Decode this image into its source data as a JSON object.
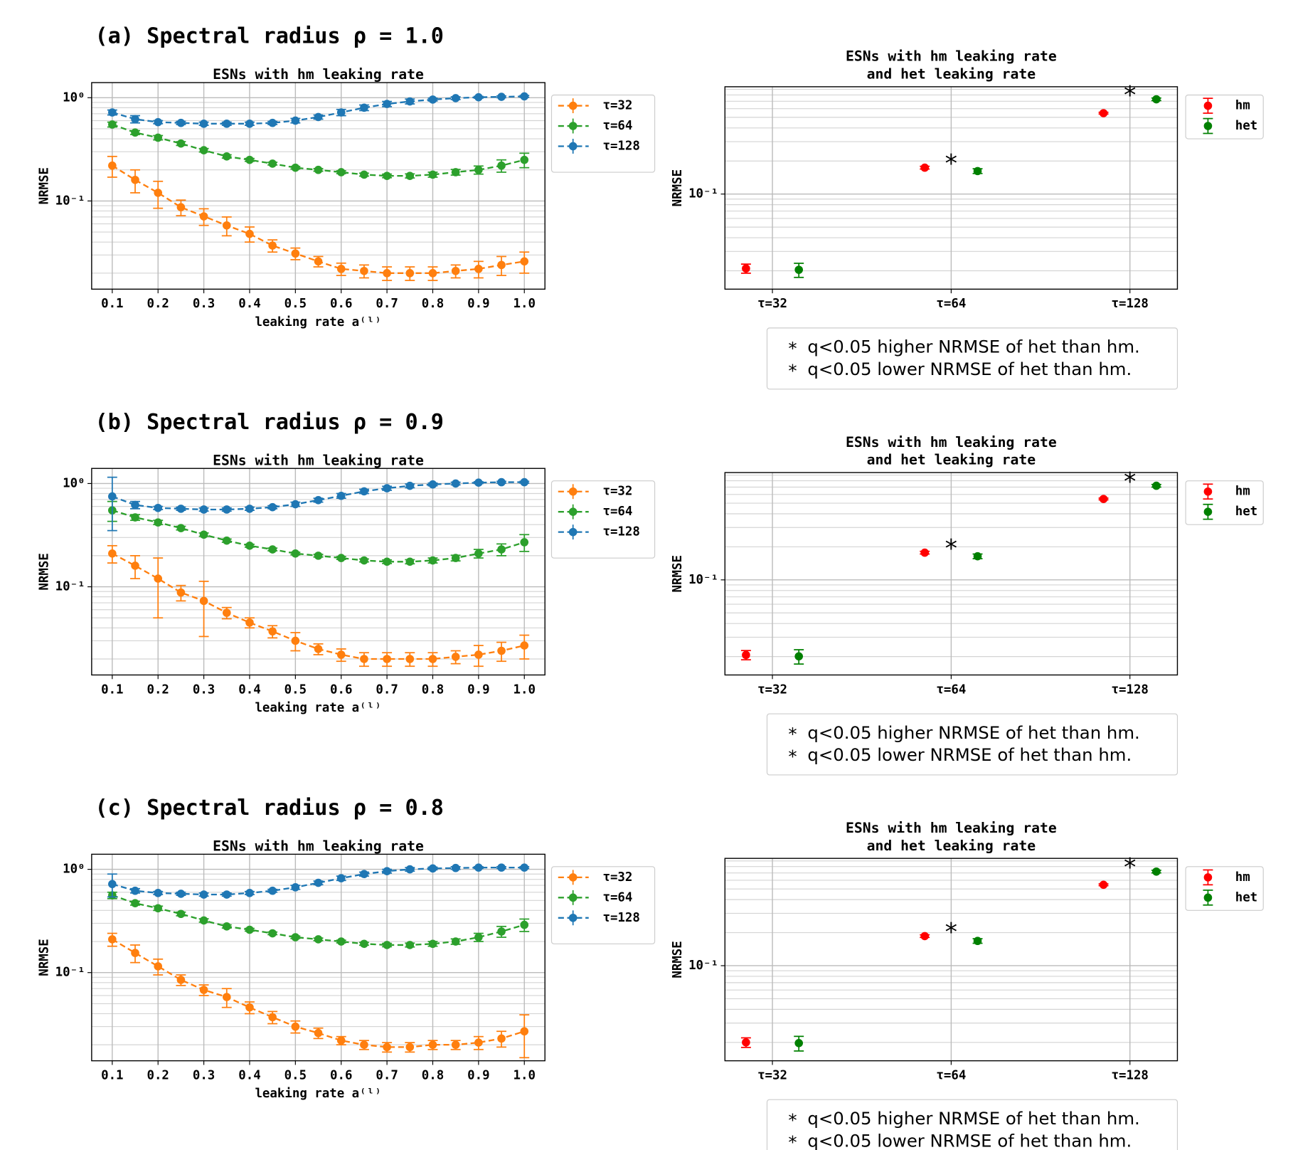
{
  "chart_data": [
    {
      "type": "line",
      "panel_label": "(a) Spectral radius ρ = 1.0",
      "title": "ESNs with hm leaking rate",
      "xlabel": "leaking rate a⁽ˡ⁾",
      "ylabel": "NRMSE",
      "log_y": true,
      "grid": true,
      "xlim": [
        0.055,
        1.045
      ],
      "ylim": [
        0.014,
        1.4
      ],
      "xticks": [
        0.1,
        0.2,
        0.3,
        0.4,
        0.5,
        0.6,
        0.7,
        0.8,
        0.9,
        {
          "value": 1,
          "label": "1.0"
        }
      ],
      "yticks": [
        {
          "value": 1,
          "label": "10⁰"
        },
        {
          "value": 0.1,
          "label": "10⁻¹"
        }
      ],
      "minor_yticks": [
        0.02,
        0.03,
        0.04,
        0.05,
        0.06,
        0.07,
        0.08,
        0.09,
        0.2,
        0.3,
        0.4,
        0.5,
        0.6,
        0.7,
        0.8,
        0.9
      ],
      "x": [
        0.1,
        0.15,
        0.2,
        0.25,
        0.3,
        0.35,
        0.4,
        0.45,
        0.5,
        0.55,
        0.6,
        0.65,
        0.7,
        0.75,
        0.8,
        0.85,
        0.9,
        0.95,
        1.0
      ],
      "series": [
        {
          "name": "τ=32",
          "color": "#ff7f0e",
          "values": [
            0.22,
            0.16,
            0.12,
            0.087,
            0.071,
            0.058,
            0.048,
            0.037,
            0.031,
            0.026,
            0.022,
            0.021,
            0.02,
            0.02,
            0.02,
            0.021,
            0.022,
            0.024,
            0.026
          ],
          "errors": [
            0.05,
            0.04,
            0.035,
            0.015,
            0.013,
            0.012,
            0.008,
            0.005,
            0.004,
            0.003,
            0.003,
            0.003,
            0.003,
            0.003,
            0.003,
            0.003,
            0.004,
            0.005,
            0.006
          ]
        },
        {
          "name": "τ=64",
          "color": "#2ca02c",
          "values": [
            0.55,
            0.46,
            0.41,
            0.36,
            0.31,
            0.27,
            0.25,
            0.23,
            0.21,
            0.2,
            0.19,
            0.18,
            0.175,
            0.175,
            0.18,
            0.19,
            0.2,
            0.22,
            0.25
          ],
          "errors": [
            0.03,
            0.02,
            0.02,
            0.015,
            0.012,
            0.01,
            0.008,
            0.007,
            0.006,
            0.006,
            0.006,
            0.006,
            0.007,
            0.008,
            0.01,
            0.012,
            0.018,
            0.03,
            0.04
          ]
        },
        {
          "name": "τ=128",
          "color": "#1f77b4",
          "values": [
            0.72,
            0.62,
            0.58,
            0.57,
            0.56,
            0.56,
            0.56,
            0.57,
            0.6,
            0.65,
            0.72,
            0.8,
            0.87,
            0.92,
            0.96,
            0.99,
            1.01,
            1.02,
            1.03
          ],
          "errors": [
            0.04,
            0.05,
            0.02,
            0.02,
            0.02,
            0.02,
            0.02,
            0.02,
            0.03,
            0.03,
            0.05,
            0.05,
            0.05,
            0.05,
            0.03,
            0.03,
            0.02,
            0.02,
            0.02
          ]
        }
      ]
    },
    {
      "type": "dot",
      "title": [
        "ESNs with hm leaking rate",
        "and het leaking rate"
      ],
      "ylabel": "NRMSE",
      "log_y": true,
      "grid": true,
      "ylim": [
        0.0136,
        0.95
      ],
      "yticks": [
        {
          "value": 0.1,
          "label": "10⁻¹"
        }
      ],
      "minor_yticks": [
        0.02,
        0.03,
        0.04,
        0.05,
        0.06,
        0.07,
        0.08,
        0.09,
        0.2,
        0.3,
        0.4,
        0.5,
        0.6,
        0.7,
        0.8,
        0.9
      ],
      "categories": [
        "τ=32",
        "τ=64",
        "τ=128"
      ],
      "series": [
        {
          "name": "hm",
          "color": "#ff0000",
          "values": [
            0.021,
            0.174,
            0.546
          ],
          "errors": [
            0.002,
            0.005,
            0.01
          ]
        },
        {
          "name": "het",
          "color": "#008000",
          "values": [
            0.0204,
            0.162,
            0.73
          ],
          "errors": [
            0.003,
            0.008,
            0.02
          ]
        }
      ],
      "markers": [
        {
          "category": "τ=64",
          "symbol": "*",
          "color": "#66cc55"
        },
        {
          "category": "τ=128",
          "symbol": "*",
          "color": "#c8339a"
        }
      ],
      "notes": [
        {
          "symbol": "*",
          "color": "#c8339a",
          "text": "q<0.05 higher NRMSE of het than hm."
        },
        {
          "symbol": "*",
          "color": "#66cc55",
          "text": "q<0.05 lower NRMSE of het than hm."
        }
      ]
    },
    {
      "type": "line",
      "panel_label": "(b) Spectral radius ρ = 0.9",
      "title": "ESNs with hm leaking rate",
      "xlabel": "leaking rate a⁽ˡ⁾",
      "ylabel": "NRMSE",
      "log_y": true,
      "grid": true,
      "xlim": [
        0.055,
        1.045
      ],
      "ylim": [
        0.014,
        1.4
      ],
      "xticks": [
        0.1,
        0.2,
        0.3,
        0.4,
        0.5,
        0.6,
        0.7,
        0.8,
        0.9,
        {
          "value": 1,
          "label": "1.0"
        }
      ],
      "yticks": [
        {
          "value": 1,
          "label": "10⁰"
        },
        {
          "value": 0.1,
          "label": "10⁻¹"
        }
      ],
      "minor_yticks": [
        0.02,
        0.03,
        0.04,
        0.05,
        0.06,
        0.07,
        0.08,
        0.09,
        0.2,
        0.3,
        0.4,
        0.5,
        0.6,
        0.7,
        0.8,
        0.9
      ],
      "x": [
        0.1,
        0.15,
        0.2,
        0.25,
        0.3,
        0.35,
        0.4,
        0.45,
        0.5,
        0.55,
        0.6,
        0.65,
        0.7,
        0.75,
        0.8,
        0.85,
        0.9,
        0.95,
        1.0
      ],
      "series": [
        {
          "name": "τ=32",
          "color": "#ff7f0e",
          "values": [
            0.21,
            0.16,
            0.12,
            0.088,
            0.073,
            0.056,
            0.045,
            0.037,
            0.03,
            0.025,
            0.022,
            0.02,
            0.02,
            0.02,
            0.02,
            0.021,
            0.022,
            0.024,
            0.027
          ],
          "errors": [
            0.04,
            0.04,
            0.07,
            0.015,
            0.04,
            0.007,
            0.005,
            0.005,
            0.006,
            0.003,
            0.003,
            0.003,
            0.003,
            0.003,
            0.003,
            0.003,
            0.005,
            0.005,
            0.007
          ]
        },
        {
          "name": "τ=64",
          "color": "#2ca02c",
          "values": [
            0.55,
            0.47,
            0.42,
            0.37,
            0.32,
            0.28,
            0.25,
            0.23,
            0.21,
            0.2,
            0.19,
            0.18,
            0.175,
            0.175,
            0.18,
            0.19,
            0.21,
            0.23,
            0.27
          ],
          "errors": [
            0.12,
            0.03,
            0.02,
            0.015,
            0.012,
            0.01,
            0.008,
            0.007,
            0.006,
            0.006,
            0.006,
            0.006,
            0.007,
            0.008,
            0.01,
            0.012,
            0.02,
            0.03,
            0.05
          ]
        },
        {
          "name": "τ=128",
          "color": "#1f77b4",
          "values": [
            0.75,
            0.62,
            0.58,
            0.57,
            0.56,
            0.56,
            0.57,
            0.59,
            0.63,
            0.69,
            0.76,
            0.84,
            0.9,
            0.95,
            0.98,
            1.0,
            1.02,
            1.03,
            1.03
          ],
          "errors": [
            0.4,
            0.05,
            0.02,
            0.02,
            0.02,
            0.02,
            0.02,
            0.02,
            0.03,
            0.03,
            0.04,
            0.04,
            0.04,
            0.04,
            0.03,
            0.03,
            0.02,
            0.02,
            0.02
          ]
        }
      ]
    },
    {
      "type": "dot",
      "title": [
        "ESNs with hm leaking rate",
        "and het leaking rate"
      ],
      "ylabel": "NRMSE",
      "log_y": true,
      "grid": true,
      "ylim": [
        0.0136,
        0.95
      ],
      "yticks": [
        {
          "value": 0.1,
          "label": "10⁻¹"
        }
      ],
      "minor_yticks": [
        0.02,
        0.03,
        0.04,
        0.05,
        0.06,
        0.07,
        0.08,
        0.09,
        0.2,
        0.3,
        0.4,
        0.5,
        0.6,
        0.7,
        0.8,
        0.9
      ],
      "categories": [
        "τ=32",
        "τ=64",
        "τ=128"
      ],
      "series": [
        {
          "name": "hm",
          "color": "#ff0000",
          "values": [
            0.0207,
            0.177,
            0.546
          ],
          "errors": [
            0.002,
            0.005,
            0.01
          ]
        },
        {
          "name": "het",
          "color": "#008000",
          "values": [
            0.0201,
            0.164,
            0.72
          ],
          "errors": [
            0.003,
            0.008,
            0.02
          ]
        }
      ],
      "markers": [
        {
          "category": "τ=64",
          "symbol": "*",
          "color": "#66cc55"
        },
        {
          "category": "τ=128",
          "symbol": "*",
          "color": "#c8339a"
        }
      ],
      "notes": [
        {
          "symbol": "*",
          "color": "#c8339a",
          "text": "q<0.05 higher NRMSE of het than hm."
        },
        {
          "symbol": "*",
          "color": "#66cc55",
          "text": "q<0.05 lower NRMSE of het than hm."
        }
      ]
    },
    {
      "type": "line",
      "panel_label": "(c) Spectral radius ρ = 0.8",
      "title": "ESNs with hm leaking rate",
      "xlabel": "leaking rate a⁽ˡ⁾",
      "ylabel": "NRMSE",
      "log_y": true,
      "grid": true,
      "xlim": [
        0.055,
        1.045
      ],
      "ylim": [
        0.014,
        1.4
      ],
      "xticks": [
        0.1,
        0.2,
        0.3,
        0.4,
        0.5,
        0.6,
        0.7,
        0.8,
        0.9,
        {
          "value": 1,
          "label": "1.0"
        }
      ],
      "yticks": [
        {
          "value": 1,
          "label": "10⁰"
        },
        {
          "value": 0.1,
          "label": "10⁻¹"
        }
      ],
      "minor_yticks": [
        0.02,
        0.03,
        0.04,
        0.05,
        0.06,
        0.07,
        0.08,
        0.09,
        0.2,
        0.3,
        0.4,
        0.5,
        0.6,
        0.7,
        0.8,
        0.9
      ],
      "x": [
        0.1,
        0.15,
        0.2,
        0.25,
        0.3,
        0.35,
        0.4,
        0.45,
        0.5,
        0.55,
        0.6,
        0.65,
        0.7,
        0.75,
        0.8,
        0.85,
        0.9,
        0.95,
        1.0
      ],
      "series": [
        {
          "name": "τ=32",
          "color": "#ff7f0e",
          "values": [
            0.21,
            0.155,
            0.115,
            0.085,
            0.068,
            0.058,
            0.046,
            0.037,
            0.03,
            0.026,
            0.022,
            0.02,
            0.019,
            0.019,
            0.02,
            0.02,
            0.021,
            0.023,
            0.027
          ],
          "errors": [
            0.03,
            0.03,
            0.02,
            0.01,
            0.008,
            0.012,
            0.006,
            0.005,
            0.004,
            0.003,
            0.002,
            0.002,
            0.002,
            0.002,
            0.002,
            0.002,
            0.003,
            0.004,
            0.012
          ]
        },
        {
          "name": "τ=64",
          "color": "#2ca02c",
          "values": [
            0.56,
            0.47,
            0.42,
            0.37,
            0.32,
            0.28,
            0.26,
            0.24,
            0.22,
            0.21,
            0.2,
            0.19,
            0.185,
            0.185,
            0.19,
            0.2,
            0.22,
            0.25,
            0.29
          ],
          "errors": [
            0.04,
            0.02,
            0.02,
            0.015,
            0.012,
            0.01,
            0.008,
            0.007,
            0.006,
            0.006,
            0.006,
            0.006,
            0.007,
            0.008,
            0.01,
            0.012,
            0.02,
            0.03,
            0.04
          ]
        },
        {
          "name": "τ=128",
          "color": "#1f77b4",
          "values": [
            0.72,
            0.62,
            0.59,
            0.58,
            0.57,
            0.57,
            0.59,
            0.62,
            0.67,
            0.74,
            0.82,
            0.9,
            0.96,
            1.0,
            1.02,
            1.03,
            1.04,
            1.04,
            1.04
          ],
          "errors": [
            0.18,
            0.03,
            0.02,
            0.02,
            0.02,
            0.02,
            0.02,
            0.02,
            0.03,
            0.03,
            0.04,
            0.04,
            0.04,
            0.04,
            0.03,
            0.03,
            0.02,
            0.02,
            0.02
          ]
        }
      ]
    },
    {
      "type": "dot",
      "title": [
        "ESNs with hm leaking rate",
        "and het leaking rate"
      ],
      "ylabel": "NRMSE",
      "log_y": true,
      "grid": true,
      "ylim": [
        0.0136,
        0.95
      ],
      "yticks": [
        {
          "value": 0.1,
          "label": "10⁻¹"
        }
      ],
      "minor_yticks": [
        0.02,
        0.03,
        0.04,
        0.05,
        0.06,
        0.07,
        0.08,
        0.09,
        0.2,
        0.3,
        0.4,
        0.5,
        0.6,
        0.7,
        0.8,
        0.9
      ],
      "categories": [
        "τ=32",
        "τ=64",
        "τ=128"
      ],
      "series": [
        {
          "name": "hm",
          "color": "#ff0000",
          "values": [
            0.02,
            0.186,
            0.546
          ],
          "errors": [
            0.002,
            0.005,
            0.01
          ]
        },
        {
          "name": "het",
          "color": "#008000",
          "values": [
            0.0197,
            0.168,
            0.72
          ],
          "errors": [
            0.003,
            0.008,
            0.02
          ]
        }
      ],
      "markers": [
        {
          "category": "τ=64",
          "symbol": "*",
          "color": "#66cc55"
        },
        {
          "category": "τ=128",
          "symbol": "*",
          "color": "#c8339a"
        }
      ],
      "notes": [
        {
          "symbol": "*",
          "color": "#c8339a",
          "text": "q<0.05 higher NRMSE of het than hm."
        },
        {
          "symbol": "*",
          "color": "#66cc55",
          "text": "q<0.05 lower NRMSE of het than hm."
        }
      ]
    }
  ]
}
